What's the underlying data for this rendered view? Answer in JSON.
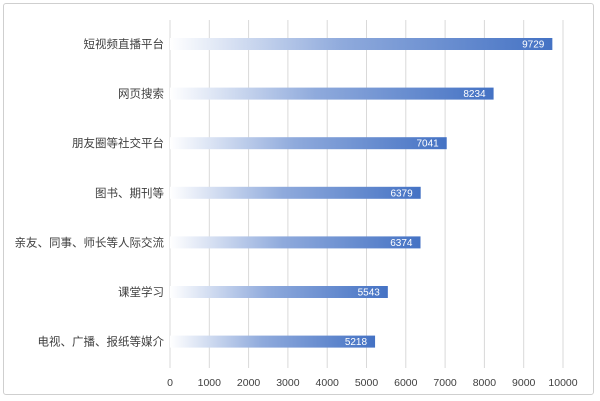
{
  "chart_data": {
    "type": "bar",
    "orientation": "horizontal",
    "categories": [
      "短视频直播平台",
      "网页搜索",
      "朋友圈等社交平台",
      "图书、期刊等",
      "亲友、同事、师长等人际交流",
      "课堂学习",
      "电视、广播、报纸等媒介"
    ],
    "values": [
      9729,
      8234,
      7041,
      6379,
      6374,
      5543,
      5218
    ],
    "xlim": [
      0,
      10000
    ],
    "xticks": [
      0,
      1000,
      2000,
      3000,
      4000,
      5000,
      6000,
      7000,
      8000,
      9000,
      10000
    ],
    "grid": "vertical",
    "data_labels": "inside-end",
    "bar_gradient": {
      "start": "#ffffff",
      "end": "#4472c4"
    },
    "title": "",
    "xlabel": "",
    "ylabel": ""
  }
}
